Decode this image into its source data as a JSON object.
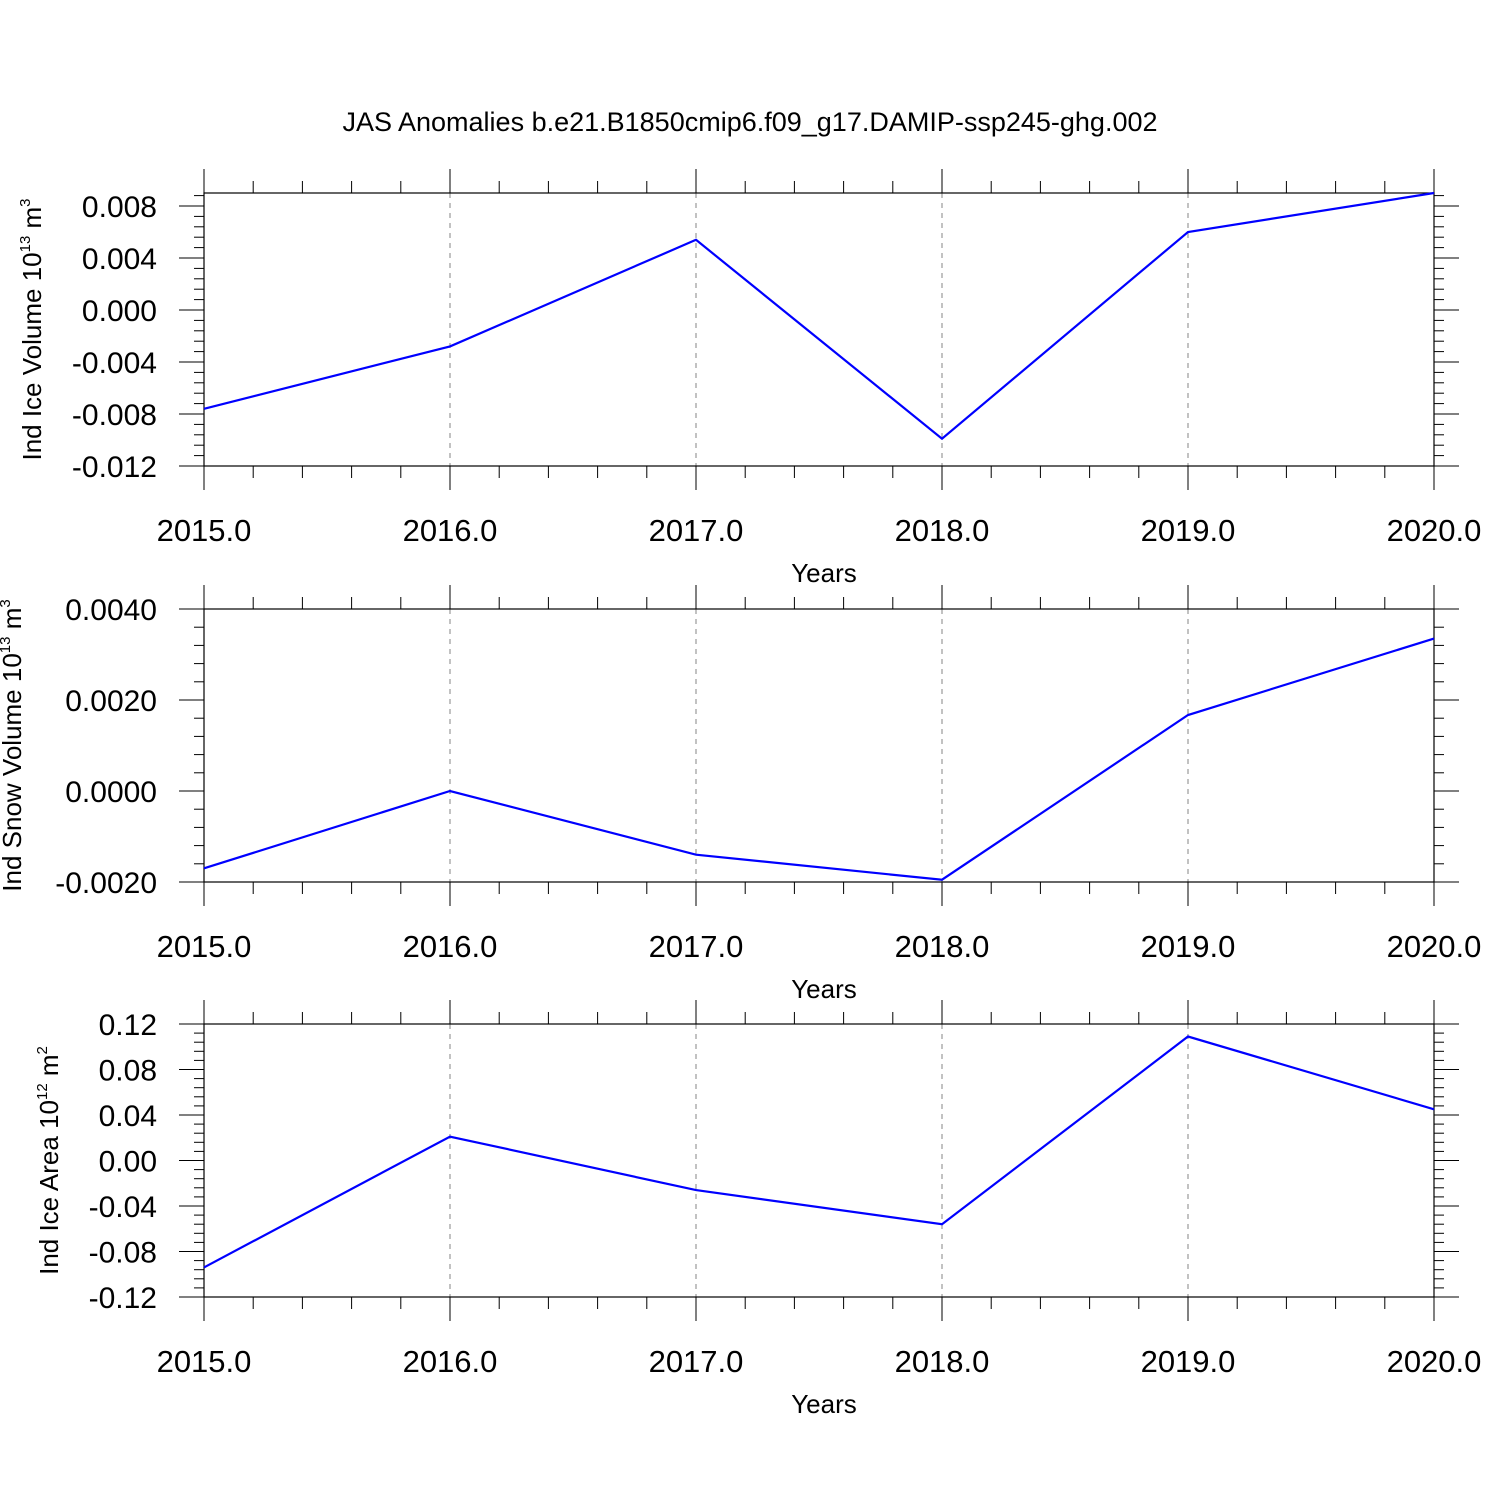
{
  "title": "JAS Anomalies b.e21.B1850cmip6.f09_g17.DAMIP-ssp245-ghg.002",
  "chart_data": [
    {
      "type": "line",
      "ylabel": "Ind Ice Volume 10^13 m^3",
      "ylabel_main": "Ind Ice Volume 10",
      "ylabel_exp": "13",
      "ylabel_unit": " m",
      "ylabel_unit_exp": "3",
      "xlabel": "Years",
      "x": [
        2015,
        2016,
        2017,
        2018,
        2019,
        2020
      ],
      "xticks": [
        "2015.0",
        "2016.0",
        "2017.0",
        "2018.0",
        "2019.0",
        "2020.0"
      ],
      "xlim": [
        2015,
        2020
      ],
      "ylim": [
        -0.012,
        0.009
      ],
      "yticks": [
        -0.012,
        -0.008,
        -0.004,
        0.0,
        0.004,
        0.008
      ],
      "yticklabels": [
        "-0.012",
        "-0.008",
        "-0.004",
        "0.000",
        "0.004",
        "0.008"
      ],
      "yminor": 0.0008,
      "series": [
        {
          "values": [
            -0.0076,
            -0.0028,
            0.0054,
            -0.0099,
            0.006,
            0.009
          ],
          "color": "#0000ff"
        }
      ],
      "grid": "vertical dashed at major x ticks"
    },
    {
      "type": "line",
      "ylabel": "Ind Snow Volume 10^13 m^3",
      "ylabel_main": "Ind Snow Volume 10",
      "ylabel_exp": "13",
      "ylabel_unit": " m",
      "ylabel_unit_exp": "3",
      "xlabel": "Years",
      "x": [
        2015,
        2016,
        2017,
        2018,
        2019,
        2020
      ],
      "xticks": [
        "2015.0",
        "2016.0",
        "2017.0",
        "2018.0",
        "2019.0",
        "2020.0"
      ],
      "xlim": [
        2015,
        2020
      ],
      "ylim": [
        -0.002,
        0.004
      ],
      "yticks": [
        -0.002,
        0.0,
        0.002,
        0.004
      ],
      "yticklabels": [
        "-0.0020",
        "0.0000",
        "0.0020",
        "0.0040"
      ],
      "yminor": 0.0004,
      "series": [
        {
          "values": [
            -0.0017,
            0.0,
            -0.0014,
            -0.00195,
            0.00167,
            0.00335
          ],
          "color": "#0000ff"
        }
      ],
      "grid": "vertical dashed at major x ticks"
    },
    {
      "type": "line",
      "ylabel": "Ind Ice Area 10^12 m^2",
      "ylabel_main": "Ind Ice Area 10",
      "ylabel_exp": "12",
      "ylabel_unit": " m",
      "ylabel_unit_exp": "2",
      "xlabel": "Years",
      "x": [
        2015,
        2016,
        2017,
        2018,
        2019,
        2020
      ],
      "xticks": [
        "2015.0",
        "2016.0",
        "2017.0",
        "2018.0",
        "2019.0",
        "2020.0"
      ],
      "xlim": [
        2015,
        2020
      ],
      "ylim": [
        -0.12,
        0.12
      ],
      "yticks": [
        -0.12,
        -0.08,
        -0.04,
        0.0,
        0.04,
        0.08,
        0.12
      ],
      "yticklabels": [
        "-0.12",
        "-0.08",
        "-0.04",
        "0.00",
        "0.04",
        "0.08",
        "0.12"
      ],
      "yminor": 0.008,
      "series": [
        {
          "values": [
            -0.094,
            0.021,
            -0.026,
            -0.056,
            0.109,
            0.045
          ],
          "color": "#0000ff"
        }
      ],
      "grid": "vertical dashed at major x ticks"
    }
  ]
}
